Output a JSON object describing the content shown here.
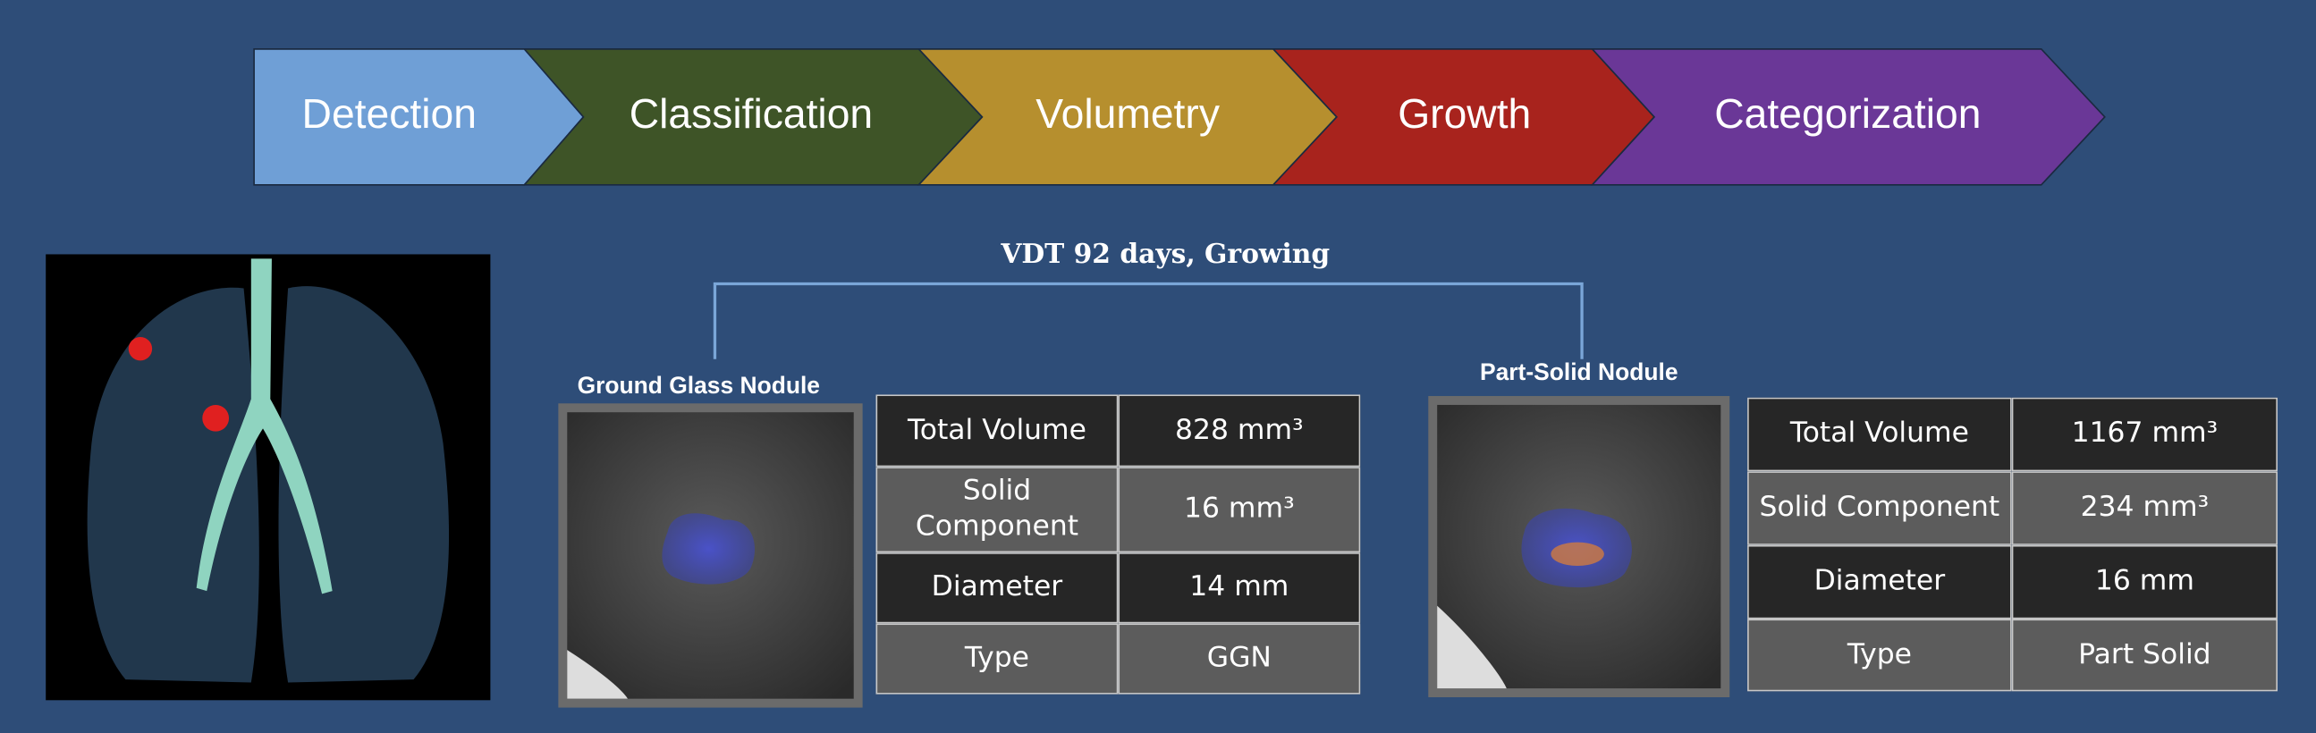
{
  "pipeline": [
    "Detection",
    "Classification",
    "Volumetry",
    "Growth",
    "Categorization"
  ],
  "growth_label": "VDT 92 days, Growing",
  "nodules": [
    {
      "label": "Ground Glass Nodule",
      "table": [
        [
          "Total Volume",
          "828 mm³"
        ],
        [
          "Solid Component",
          "16 mm³"
        ],
        [
          "Diameter",
          "14 mm"
        ],
        [
          "Type",
          "GGN"
        ]
      ]
    },
    {
      "label": "Part-Solid Nodule",
      "table": [
        [
          "Total Volume",
          "1167 mm³"
        ],
        [
          "Solid Component",
          "234 mm³"
        ],
        [
          "Diameter",
          "16 mm"
        ],
        [
          "Type",
          "Part Solid"
        ]
      ]
    }
  ]
}
